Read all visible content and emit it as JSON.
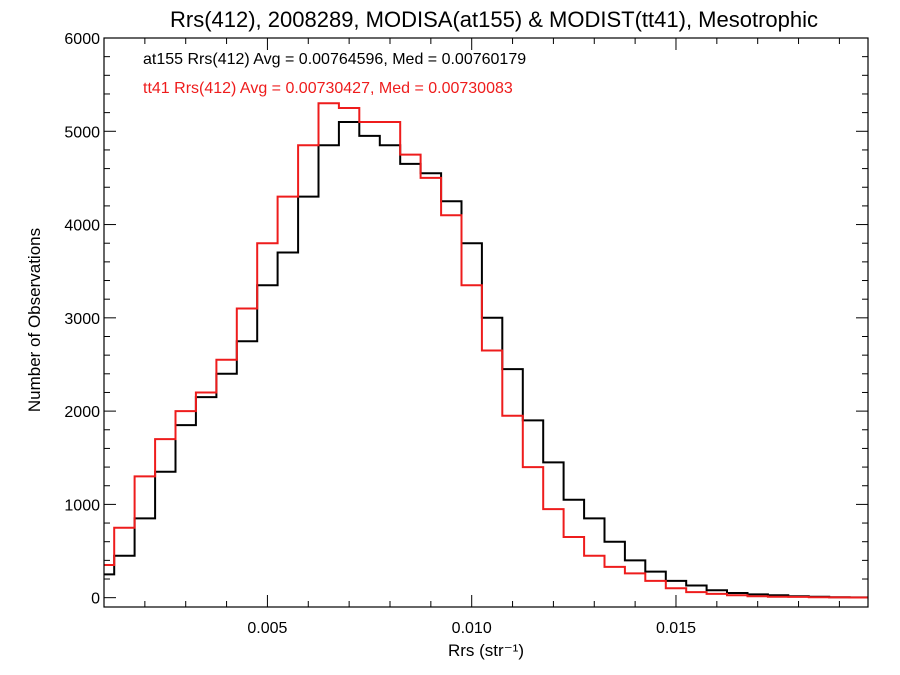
{
  "chart_data": {
    "type": "line",
    "title": "Rrs(412), 2008289, MODISA(at155) & MODIST(tt41), Mesotrophic",
    "xlabel": "Rrs (str⁻¹)",
    "ylabel": "Number of Observations",
    "xlim": [
      0.001,
      0.0197
    ],
    "ylim": [
      -100,
      6000
    ],
    "xticks": [
      {
        "value": 0.005,
        "label": "0.005"
      },
      {
        "value": 0.01,
        "label": "0.010"
      },
      {
        "value": 0.015,
        "label": "0.015"
      }
    ],
    "yticks": [
      {
        "value": 0,
        "label": "0"
      },
      {
        "value": 1000,
        "label": "1000"
      },
      {
        "value": 2000,
        "label": "2000"
      },
      {
        "value": 3000,
        "label": "3000"
      },
      {
        "value": 4000,
        "label": "4000"
      },
      {
        "value": 5000,
        "label": "5000"
      },
      {
        "value": 6000,
        "label": "6000"
      }
    ],
    "grid": false,
    "legend_position": "top-left",
    "annotations": [
      {
        "text": "at155 Rrs(412) Avg = 0.00764596, Med = 0.00760179",
        "color": "#000000"
      },
      {
        "text": "tt41 Rrs(412) Avg = 0.00730427, Med = 0.00730083",
        "color": "#ee1c1c"
      }
    ],
    "series": [
      {
        "color": "#000000",
        "x": [
          0.001,
          0.0015,
          0.002,
          0.0025,
          0.003,
          0.0035,
          0.004,
          0.0045,
          0.005,
          0.0055,
          0.006,
          0.0065,
          0.007,
          0.0075,
          0.008,
          0.0085,
          0.009,
          0.0095,
          0.01,
          0.0105,
          0.011,
          0.0115,
          0.012,
          0.0125,
          0.013,
          0.0135,
          0.014,
          0.0145,
          0.015,
          0.0155,
          0.016,
          0.0165,
          0.017,
          0.0175,
          0.018,
          0.0185,
          0.019,
          0.0195
        ],
        "y": [
          250,
          450,
          850,
          1350,
          1850,
          2150,
          2400,
          2750,
          3350,
          3700,
          4300,
          4850,
          5100,
          4950,
          4850,
          4650,
          4550,
          4250,
          3800,
          3000,
          2450,
          1900,
          1450,
          1050,
          850,
          600,
          400,
          280,
          180,
          130,
          80,
          50,
          35,
          25,
          15,
          10,
          5,
          3
        ]
      },
      {
        "color": "#ee1c1c",
        "x": [
          0.001,
          0.0015,
          0.002,
          0.0025,
          0.003,
          0.0035,
          0.004,
          0.0045,
          0.005,
          0.0055,
          0.006,
          0.0065,
          0.007,
          0.0075,
          0.008,
          0.0085,
          0.009,
          0.0095,
          0.01,
          0.0105,
          0.011,
          0.0115,
          0.012,
          0.0125,
          0.013,
          0.0135,
          0.014,
          0.0145,
          0.015,
          0.0155,
          0.016,
          0.0165,
          0.017,
          0.0175,
          0.018,
          0.0185,
          0.019,
          0.0195
        ],
        "y": [
          350,
          750,
          1300,
          1700,
          2000,
          2200,
          2550,
          3100,
          3800,
          4300,
          4850,
          5300,
          5250,
          5100,
          5100,
          4750,
          4500,
          4100,
          3350,
          2650,
          1950,
          1400,
          950,
          650,
          450,
          330,
          260,
          180,
          100,
          60,
          40,
          25,
          15,
          10,
          8,
          5,
          3,
          2
        ]
      }
    ]
  }
}
